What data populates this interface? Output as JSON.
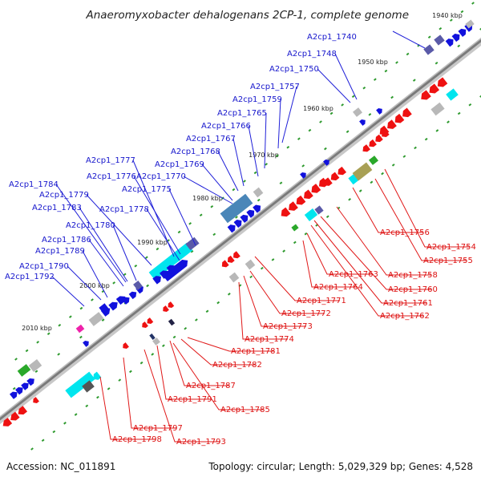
{
  "title": "Anaeromyxobacter dehalogenans 2CP-1, complete genome",
  "footer": {
    "accession": "Accession: NC_011891",
    "summary": "Topology: circular; Length: 5,029,329 bp; Genes: 4,528"
  },
  "ticks": [
    "1940 kbp",
    "1950 kbp",
    "1960 kbp",
    "1970 kbp",
    "1980 kbp",
    "1990 kbp",
    "2000 kbp",
    "2010 kbp"
  ],
  "top_genes": [
    "A2cp1_1740",
    "A2cp1_1748",
    "A2cp1_1750",
    "A2cp1_1757",
    "A2cp1_1759",
    "A2cp1_1765",
    "A2cp1_1766",
    "A2cp1_1767",
    "A2cp1_1768",
    "A2cp1_1769",
    "A2cp1_1770",
    "A2cp1_1775",
    "A2cp1_1776",
    "A2cp1_1777",
    "A2cp1_1778",
    "A2cp1_1779",
    "A2cp1_1780",
    "A2cp1_1783",
    "A2cp1_1784",
    "A2cp1_1786",
    "A2cp1_1789",
    "A2cp1_1790",
    "A2cp1_1792"
  ],
  "bottom_genes": [
    "A2cp1_1756",
    "A2cp1_1754",
    "A2cp1_1755",
    "A2cp1_1758",
    "A2cp1_1760",
    "A2cp1_1761",
    "A2cp1_1762",
    "A2cp1_1763",
    "A2cp1_1764",
    "A2cp1_1771",
    "A2cp1_1772",
    "A2cp1_1773",
    "A2cp1_1774",
    "A2cp1_1781",
    "A2cp1_1782",
    "A2cp1_1787",
    "A2cp1_1791",
    "A2cp1_1785",
    "A2cp1_1797",
    "A2cp1_1798",
    "A2cp1_1793"
  ],
  "colors": {
    "forward": "#1111dd",
    "reverse": "#ee1111",
    "backbone": "#888888",
    "cyan": "#00e5ee",
    "grey": "#b8b8b8",
    "green": "#2aa82a",
    "magenta": "#ee22aa",
    "steel": "#4a86b8",
    "olive": "#a8a055",
    "violet": "#5a5aa8"
  }
}
